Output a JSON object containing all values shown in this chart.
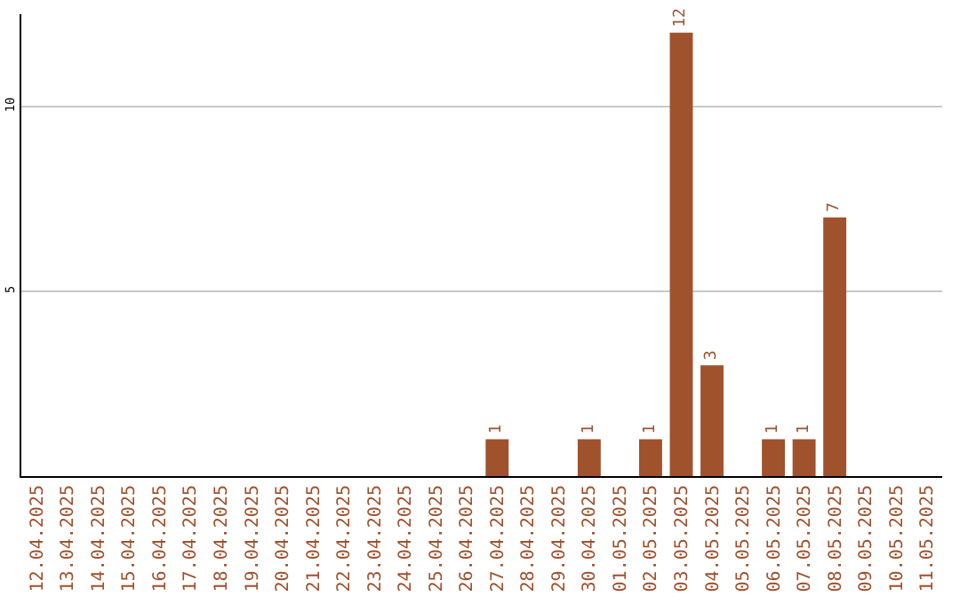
{
  "chart_data": {
    "type": "bar",
    "categories": [
      "12.04.2025",
      "13.04.2025",
      "14.04.2025",
      "15.04.2025",
      "16.04.2025",
      "17.04.2025",
      "18.04.2025",
      "19.04.2025",
      "20.04.2025",
      "21.04.2025",
      "22.04.2025",
      "23.04.2025",
      "24.04.2025",
      "25.04.2025",
      "26.04.2025",
      "27.04.2025",
      "28.04.2025",
      "29.04.2025",
      "30.04.2025",
      "01.05.2025",
      "02.05.2025",
      "03.05.2025",
      "04.05.2025",
      "05.05.2025",
      "06.05.2025",
      "07.05.2025",
      "08.05.2025",
      "09.05.2025",
      "10.05.2025",
      "11.05.2025"
    ],
    "values": [
      0,
      0,
      0,
      0,
      0,
      0,
      0,
      0,
      0,
      0,
      0,
      0,
      0,
      0,
      0,
      1,
      0,
      0,
      1,
      0,
      1,
      12,
      3,
      0,
      1,
      1,
      7,
      0,
      0,
      0
    ],
    "value_labels": [
      null,
      null,
      null,
      null,
      null,
      null,
      null,
      null,
      null,
      null,
      null,
      null,
      null,
      null,
      null,
      "1",
      null,
      null,
      "1",
      null,
      "1",
      "12",
      "3",
      null,
      "1",
      "1",
      "7",
      null,
      null,
      null
    ],
    "color": "#a0522d",
    "ylim": [
      0,
      12.5
    ],
    "yticks": [
      5,
      10
    ],
    "grid": "y"
  }
}
